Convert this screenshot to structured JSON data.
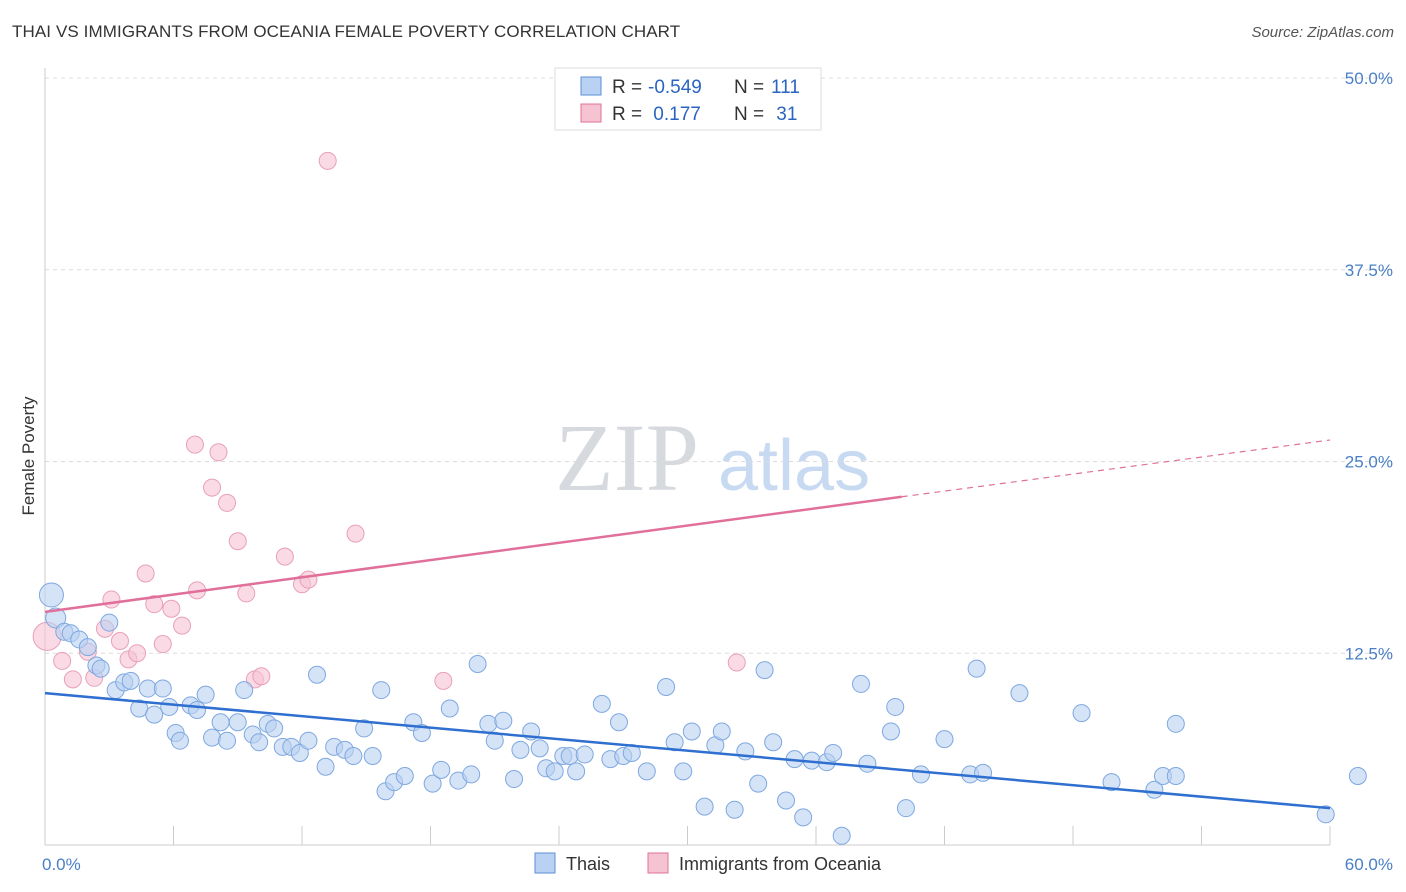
{
  "title": "THAI VS IMMIGRANTS FROM OCEANIA FEMALE POVERTY CORRELATION CHART",
  "source": "Source: ZipAtlas.com",
  "colors": {
    "blue": "#5b8fd6",
    "blue_fill": "#b9d1f2",
    "pink": "#e0709a",
    "pink_fill": "#f6c3d3",
    "axis_text": "#4a7fc7"
  },
  "chart_data": {
    "type": "scatter",
    "title": "THAI VS IMMIGRANTS FROM OCEANIA FEMALE POVERTY CORRELATION CHART",
    "xlabel": "",
    "ylabel": "Female Poverty",
    "xlim": [
      0,
      60
    ],
    "ylim": [
      0,
      50
    ],
    "x_tick_labels": [
      "0.0%",
      "60.0%"
    ],
    "y_tick_labels": [
      "12.5%",
      "25.0%",
      "37.5%",
      "50.0%"
    ],
    "y_ticks": [
      12.5,
      25.0,
      37.5,
      50.0
    ],
    "legend": {
      "placement": "top-center",
      "rows": [
        {
          "r_label": "R =",
          "r": "-0.549",
          "n_label": "N =",
          "n": "111"
        },
        {
          "r_label": "R =",
          "r": " 0.177",
          "n_label": "N =",
          "n": " 31"
        }
      ]
    },
    "series": [
      {
        "name": "Thais",
        "color": "#5b8fd6",
        "trend": {
          "x0": 0,
          "y0": 9.9,
          "x1": 60,
          "y1": 2.4
        },
        "points": [
          [
            0.3,
            16.3
          ],
          [
            0.5,
            14.8
          ],
          [
            0.9,
            13.9
          ],
          [
            1.2,
            13.8
          ],
          [
            1.6,
            13.4
          ],
          [
            2.0,
            12.9
          ],
          [
            2.4,
            11.7
          ],
          [
            2.6,
            11.5
          ],
          [
            3.0,
            14.5
          ],
          [
            3.3,
            10.1
          ],
          [
            3.7,
            10.6
          ],
          [
            4.0,
            10.7
          ],
          [
            4.4,
            8.9
          ],
          [
            4.8,
            10.2
          ],
          [
            5.1,
            8.5
          ],
          [
            5.5,
            10.2
          ],
          [
            5.8,
            9.0
          ],
          [
            6.1,
            7.3
          ],
          [
            6.3,
            6.8
          ],
          [
            6.8,
            9.1
          ],
          [
            7.1,
            8.8
          ],
          [
            7.5,
            9.8
          ],
          [
            7.8,
            7.0
          ],
          [
            8.2,
            8.0
          ],
          [
            8.5,
            6.8
          ],
          [
            9.0,
            8.0
          ],
          [
            9.3,
            10.1
          ],
          [
            9.7,
            7.2
          ],
          [
            10.0,
            6.7
          ],
          [
            10.4,
            7.9
          ],
          [
            10.7,
            7.6
          ],
          [
            11.1,
            6.4
          ],
          [
            11.5,
            6.4
          ],
          [
            11.9,
            6.0
          ],
          [
            12.3,
            6.8
          ],
          [
            12.7,
            11.1
          ],
          [
            13.1,
            5.1
          ],
          [
            13.5,
            6.4
          ],
          [
            14.0,
            6.2
          ],
          [
            14.4,
            5.8
          ],
          [
            14.9,
            7.6
          ],
          [
            15.3,
            5.8
          ],
          [
            15.7,
            10.1
          ],
          [
            15.9,
            3.5
          ],
          [
            16.3,
            4.1
          ],
          [
            16.8,
            4.5
          ],
          [
            17.2,
            8.0
          ],
          [
            17.6,
            7.3
          ],
          [
            18.1,
            4.0
          ],
          [
            18.5,
            4.9
          ],
          [
            18.9,
            8.9
          ],
          [
            19.3,
            4.2
          ],
          [
            19.9,
            4.6
          ],
          [
            20.2,
            11.8
          ],
          [
            20.7,
            7.9
          ],
          [
            21.0,
            6.8
          ],
          [
            21.4,
            8.1
          ],
          [
            21.9,
            4.3
          ],
          [
            22.2,
            6.2
          ],
          [
            22.7,
            7.4
          ],
          [
            23.1,
            6.3
          ],
          [
            23.4,
            5.0
          ],
          [
            23.8,
            4.8
          ],
          [
            24.2,
            5.8
          ],
          [
            24.5,
            5.8
          ],
          [
            24.8,
            4.8
          ],
          [
            25.2,
            5.9
          ],
          [
            26.0,
            9.2
          ],
          [
            26.4,
            5.6
          ],
          [
            26.8,
            8.0
          ],
          [
            27.0,
            5.8
          ],
          [
            27.4,
            6.0
          ],
          [
            28.1,
            4.8
          ],
          [
            29.0,
            10.3
          ],
          [
            29.4,
            6.7
          ],
          [
            29.8,
            4.8
          ],
          [
            30.2,
            7.4
          ],
          [
            30.8,
            2.5
          ],
          [
            31.3,
            6.5
          ],
          [
            31.6,
            7.4
          ],
          [
            32.2,
            2.3
          ],
          [
            32.7,
            6.1
          ],
          [
            33.3,
            4.0
          ],
          [
            33.6,
            11.4
          ],
          [
            34.0,
            6.7
          ],
          [
            34.6,
            2.9
          ],
          [
            35.0,
            5.6
          ],
          [
            35.4,
            1.8
          ],
          [
            35.8,
            5.5
          ],
          [
            36.5,
            5.4
          ],
          [
            36.8,
            6.0
          ],
          [
            37.2,
            0.6
          ],
          [
            38.1,
            10.5
          ],
          [
            38.4,
            5.3
          ],
          [
            39.5,
            7.4
          ],
          [
            39.7,
            9.0
          ],
          [
            40.2,
            2.4
          ],
          [
            40.9,
            4.6
          ],
          [
            42.0,
            6.9
          ],
          [
            43.2,
            4.6
          ],
          [
            43.5,
            11.5
          ],
          [
            43.8,
            4.7
          ],
          [
            45.5,
            9.9
          ],
          [
            48.4,
            8.6
          ],
          [
            49.8,
            4.1
          ],
          [
            51.8,
            3.6
          ],
          [
            52.2,
            4.5
          ],
          [
            52.8,
            7.9
          ],
          [
            52.8,
            4.5
          ],
          [
            59.8,
            2.0
          ],
          [
            61.3,
            4.5
          ]
        ],
        "point_sizes_note": "first two points are larger"
      },
      {
        "name": "Immigrants from Oceania",
        "color": "#e0709a",
        "trend": {
          "x0": 0,
          "y0": 15.2,
          "x1": 40,
          "y1": 22.7,
          "dashed_to_x": 60,
          "dashed_to_y": 26.4
        },
        "points": [
          [
            0.1,
            13.6
          ],
          [
            0.8,
            12.0
          ],
          [
            1.3,
            10.8
          ],
          [
            2.0,
            12.6
          ],
          [
            2.3,
            10.9
          ],
          [
            2.8,
            14.1
          ],
          [
            3.1,
            16.0
          ],
          [
            3.5,
            13.3
          ],
          [
            3.9,
            12.1
          ],
          [
            4.3,
            12.5
          ],
          [
            4.7,
            17.7
          ],
          [
            5.1,
            15.7
          ],
          [
            5.5,
            13.1
          ],
          [
            5.9,
            15.4
          ],
          [
            6.4,
            14.3
          ],
          [
            7.0,
            26.1
          ],
          [
            7.1,
            16.6
          ],
          [
            7.8,
            23.3
          ],
          [
            8.1,
            25.6
          ],
          [
            8.5,
            22.3
          ],
          [
            9.0,
            19.8
          ],
          [
            9.4,
            16.4
          ],
          [
            9.8,
            10.8
          ],
          [
            10.1,
            11.0
          ],
          [
            11.2,
            18.8
          ],
          [
            12.0,
            17.0
          ],
          [
            12.3,
            17.3
          ],
          [
            13.2,
            44.6
          ],
          [
            14.5,
            20.3
          ],
          [
            18.6,
            10.7
          ],
          [
            32.3,
            11.9
          ]
        ]
      }
    ]
  },
  "bottom_legend": {
    "thais": "Thais",
    "oceania": "Immigrants from Oceania"
  },
  "watermark": {
    "zip": "ZIP",
    "atlas": "atlas"
  }
}
